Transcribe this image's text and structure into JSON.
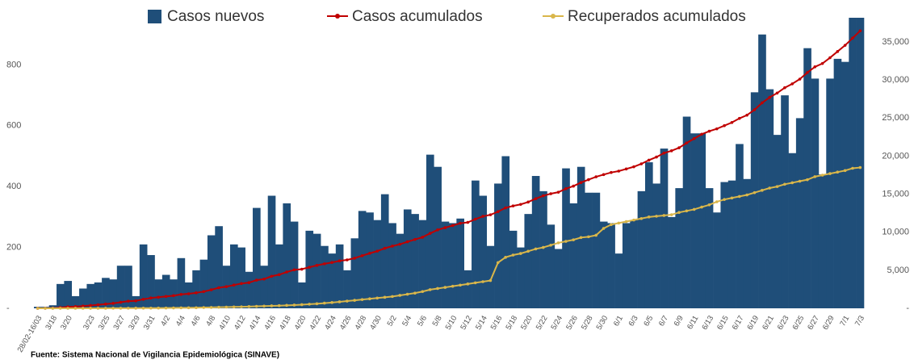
{
  "chart_data": {
    "type": "bar_line",
    "source": "Fuente: Sistema Nacional de Vigilancia Epidemiológica (SINAVE)",
    "categories": [
      "28/02-16/03",
      null,
      "3/18",
      null,
      "3/20",
      null,
      null,
      "3/23",
      null,
      "3/25",
      null,
      "3/27",
      null,
      "3/29",
      null,
      "3/31",
      null,
      "4/2",
      null,
      "4/4",
      null,
      "4/6",
      null,
      "4/8",
      null,
      "4/10",
      null,
      "4/12",
      null,
      "4/14",
      null,
      "4/16",
      null,
      "4/18",
      null,
      "4/20",
      null,
      "4/22",
      null,
      "4/24",
      null,
      "4/26",
      null,
      "4/28",
      null,
      "4/30",
      null,
      "5/2",
      null,
      "5/4",
      null,
      "5/6",
      null,
      "5/8",
      null,
      "5/10",
      null,
      "5/12",
      null,
      "5/14",
      null,
      "5/16",
      null,
      "5/18",
      null,
      "5/20",
      null,
      "5/22",
      null,
      "5/24",
      null,
      "5/26",
      null,
      "5/28",
      null,
      "5/30",
      null,
      "6/1",
      null,
      "6/3",
      null,
      "6/5",
      null,
      "6/7",
      null,
      "6/9",
      null,
      "6/11",
      null,
      "6/13",
      null,
      "6/15",
      null,
      "6/17",
      null,
      "6/19",
      null,
      "6/21",
      null,
      "6/23",
      null,
      "6/25",
      null,
      "6/27",
      null,
      "6/29",
      null,
      "7/1",
      null,
      "7/3"
    ],
    "series": [
      {
        "name": "Casos nuevos",
        "color": "#1f4e79",
        "kind": "bar",
        "axis": "y",
        "values": [
          5,
          5,
          10,
          80,
          90,
          40,
          65,
          80,
          85,
          100,
          95,
          140,
          140,
          40,
          210,
          175,
          95,
          110,
          95,
          165,
          85,
          125,
          160,
          240,
          270,
          140,
          210,
          200,
          120,
          330,
          140,
          370,
          210,
          345,
          285,
          85,
          255,
          245,
          205,
          180,
          210,
          125,
          230,
          320,
          315,
          290,
          375,
          280,
          245,
          325,
          310,
          290,
          505,
          465,
          285,
          280,
          295,
          125,
          420,
          370,
          205,
          410,
          500,
          255,
          200,
          310,
          435,
          385,
          275,
          195,
          460,
          345,
          465,
          380,
          380,
          285,
          280,
          180,
          280,
          290,
          385,
          480,
          410,
          525,
          300,
          395,
          630,
          575,
          575,
          395,
          315,
          415,
          420,
          540,
          425,
          710,
          900,
          720,
          570,
          700,
          510,
          625,
          855,
          755,
          440,
          755,
          820,
          810,
          955,
          955
        ]
      },
      {
        "name": "Casos acumulados",
        "color": "#c00000",
        "kind": "line",
        "axis": "y2",
        "values": [
          5,
          10,
          20,
          100,
          190,
          230,
          295,
          375,
          460,
          560,
          655,
          795,
          935,
          975,
          1185,
          1360,
          1455,
          1565,
          1660,
          1825,
          1910,
          2035,
          2195,
          2435,
          2705,
          2845,
          3055,
          3255,
          3375,
          3705,
          3845,
          4215,
          4425,
          4770,
          5055,
          5140,
          5395,
          5640,
          5845,
          6025,
          6235,
          6360,
          6590,
          6910,
          7225,
          7515,
          7890,
          8170,
          8415,
          8740,
          9050,
          9340,
          9845,
          10310,
          10595,
          10875,
          11170,
          11295,
          11715,
          12085,
          12290,
          12700,
          13200,
          13455,
          13655,
          13965,
          14400,
          14785,
          15060,
          15255,
          15715,
          16060,
          16525,
          16905,
          17285,
          17570,
          17850,
          18030,
          18310,
          18600,
          18985,
          19465,
          19875,
          20400,
          20700,
          21095,
          21725,
          22300,
          22875,
          23270,
          23585,
          24000,
          24420,
          24960,
          25385,
          26095,
          26995,
          27715,
          28285,
          28985,
          29495,
          30120,
          30975,
          31730,
          32170,
          32925,
          33745,
          34555,
          35510,
          36465
        ]
      },
      {
        "name": "Recuperados acumulados",
        "color": "#d9b64a",
        "kind": "line",
        "axis": "y2",
        "values": [
          0,
          0,
          0,
          0,
          0,
          2,
          2,
          4,
          4,
          6,
          8,
          10,
          12,
          15,
          20,
          25,
          30,
          40,
          50,
          60,
          70,
          80,
          100,
          120,
          140,
          160,
          180,
          200,
          230,
          260,
          290,
          320,
          350,
          390,
          430,
          480,
          540,
          600,
          680,
          760,
          850,
          950,
          1050,
          1150,
          1250,
          1350,
          1450,
          1550,
          1700,
          1850,
          2000,
          2200,
          2450,
          2600,
          2750,
          2900,
          3050,
          3200,
          3350,
          3500,
          3650,
          6000,
          6700,
          7000,
          7200,
          7500,
          7800,
          8000,
          8300,
          8600,
          8800,
          9000,
          9300,
          9400,
          9600,
          10500,
          11000,
          11200,
          11400,
          11600,
          11800,
          12000,
          12100,
          12200,
          12300,
          12600,
          12800,
          13000,
          13300,
          13600,
          14000,
          14300,
          14500,
          14700,
          14900,
          15200,
          15500,
          15800,
          16000,
          16300,
          16500,
          16700,
          16900,
          17300,
          17500,
          17700,
          17900,
          18100,
          18400,
          18500
        ]
      }
    ],
    "ylim": [
      0,
      955
    ],
    "yticks": [
      {
        "value": 0,
        "label": "-"
      },
      200,
      400,
      600,
      800
    ],
    "y2lim": [
      0,
      38180
    ],
    "y2ticks": [
      {
        "value": 0,
        "label": "-"
      },
      {
        "value": 5000,
        "label": "5,000"
      },
      {
        "value": 10000,
        "label": "10,000"
      },
      {
        "value": 15000,
        "label": "15,000"
      },
      {
        "value": 20000,
        "label": "20,000"
      },
      {
        "value": 25000,
        "label": "25,000"
      },
      {
        "value": 30000,
        "label": "30,000"
      },
      {
        "value": 35000,
        "label": "35,000"
      }
    ],
    "legend": "top"
  }
}
